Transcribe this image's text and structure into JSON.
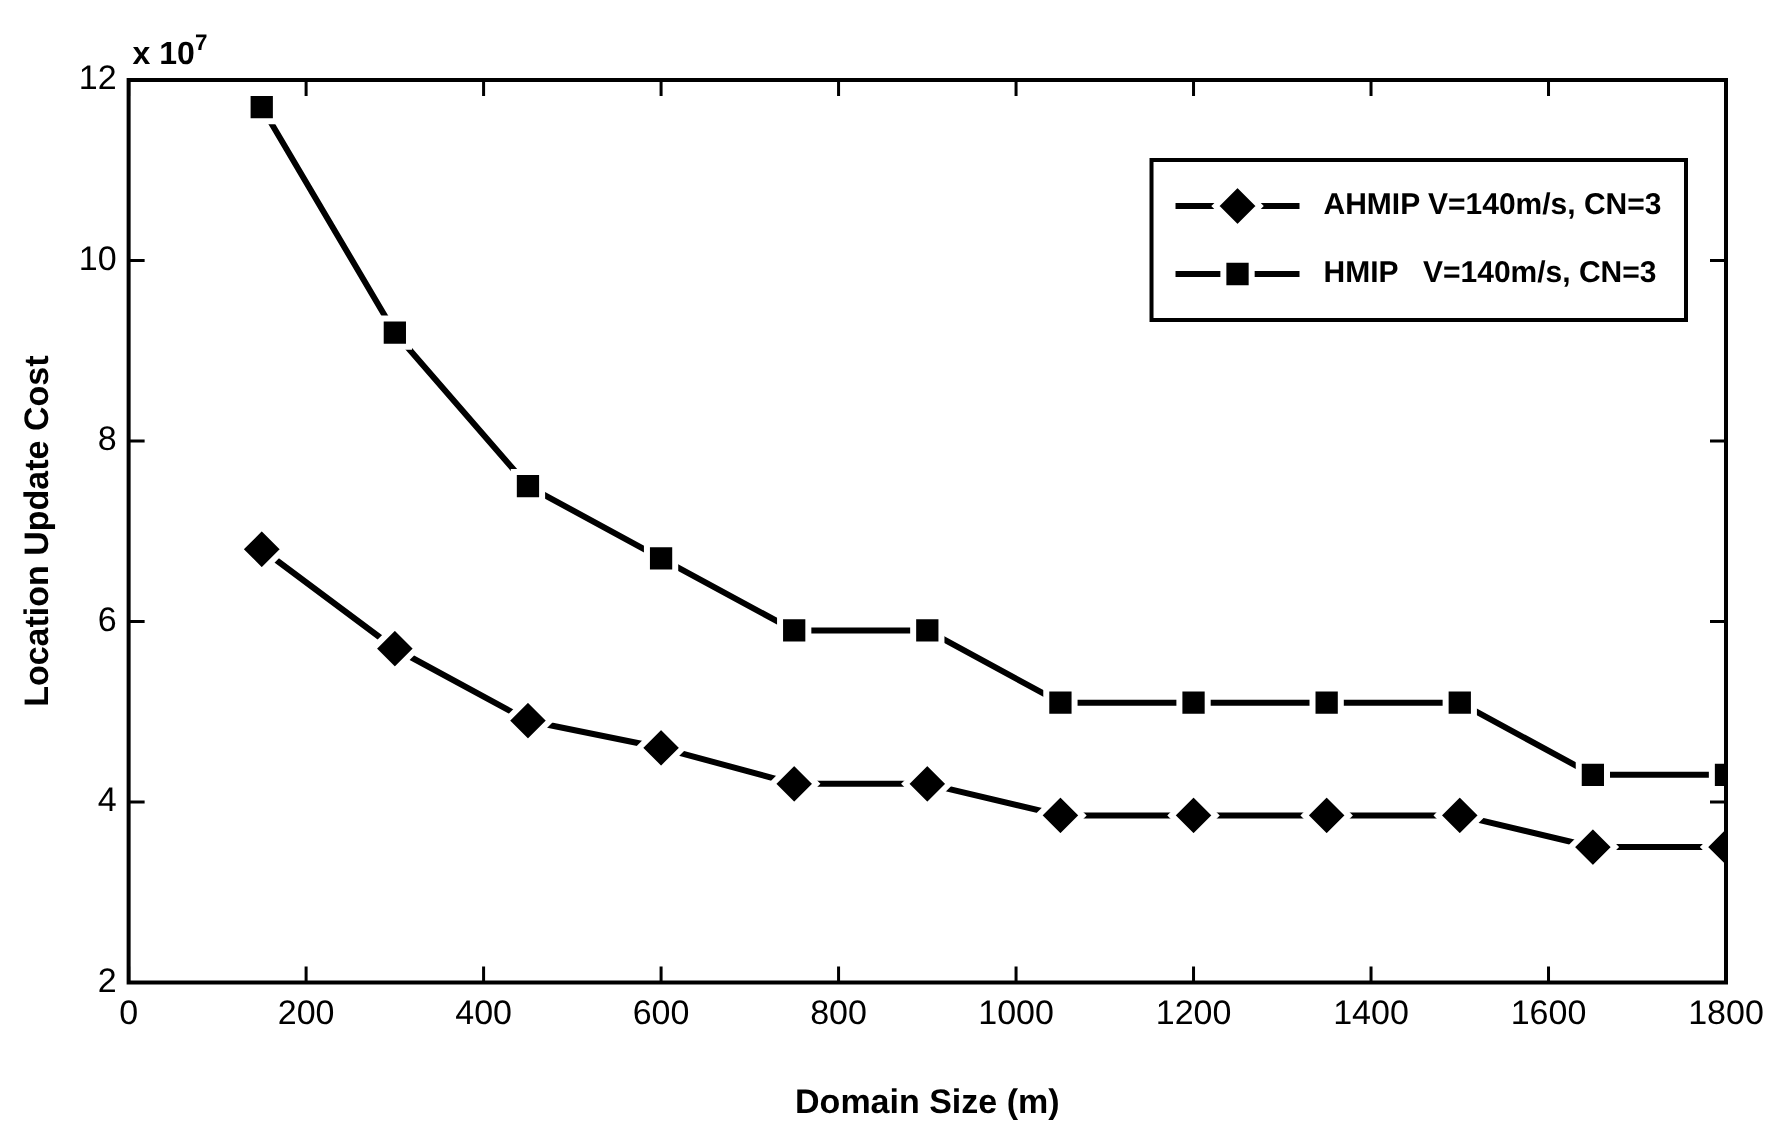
{
  "chart_data": {
    "type": "line",
    "xlabel": "Domain Size (m)",
    "ylabel": "Location Update Cost",
    "annotations": [
      "x 10$^{7}$"
    ],
    "x": [
      150,
      300,
      450,
      600,
      750,
      900,
      1050,
      1200,
      1350,
      1500,
      1650,
      1800
    ],
    "series": [
      {
        "name": "AHMIP V=140m/s, CN=3",
        "color": "#000000",
        "marker": "diamond",
        "line_style": "solid",
        "values": [
          6.8,
          5.7,
          4.9,
          4.6,
          4.2,
          4.2,
          3.85,
          3.85,
          3.85,
          3.85,
          3.5,
          3.5
        ]
      },
      {
        "name": "HMIP   V=140m/s, CN=3",
        "color": "#000000",
        "marker": "square",
        "line_style": "solid",
        "values": [
          11.7,
          9.2,
          7.5,
          6.7,
          5.9,
          5.9,
          5.1,
          5.1,
          5.1,
          5.1,
          4.3,
          4.3
        ]
      }
    ],
    "xlim": [
      0,
      1800
    ],
    "xticks": [
      0,
      200,
      400,
      600,
      800,
      1000,
      1200,
      1400,
      1600,
      1800
    ],
    "ylim": [
      2,
      12
    ],
    "yticks": [
      2,
      4,
      6,
      8,
      10,
      12
    ],
    "grid": false,
    "legend": "top right"
  }
}
